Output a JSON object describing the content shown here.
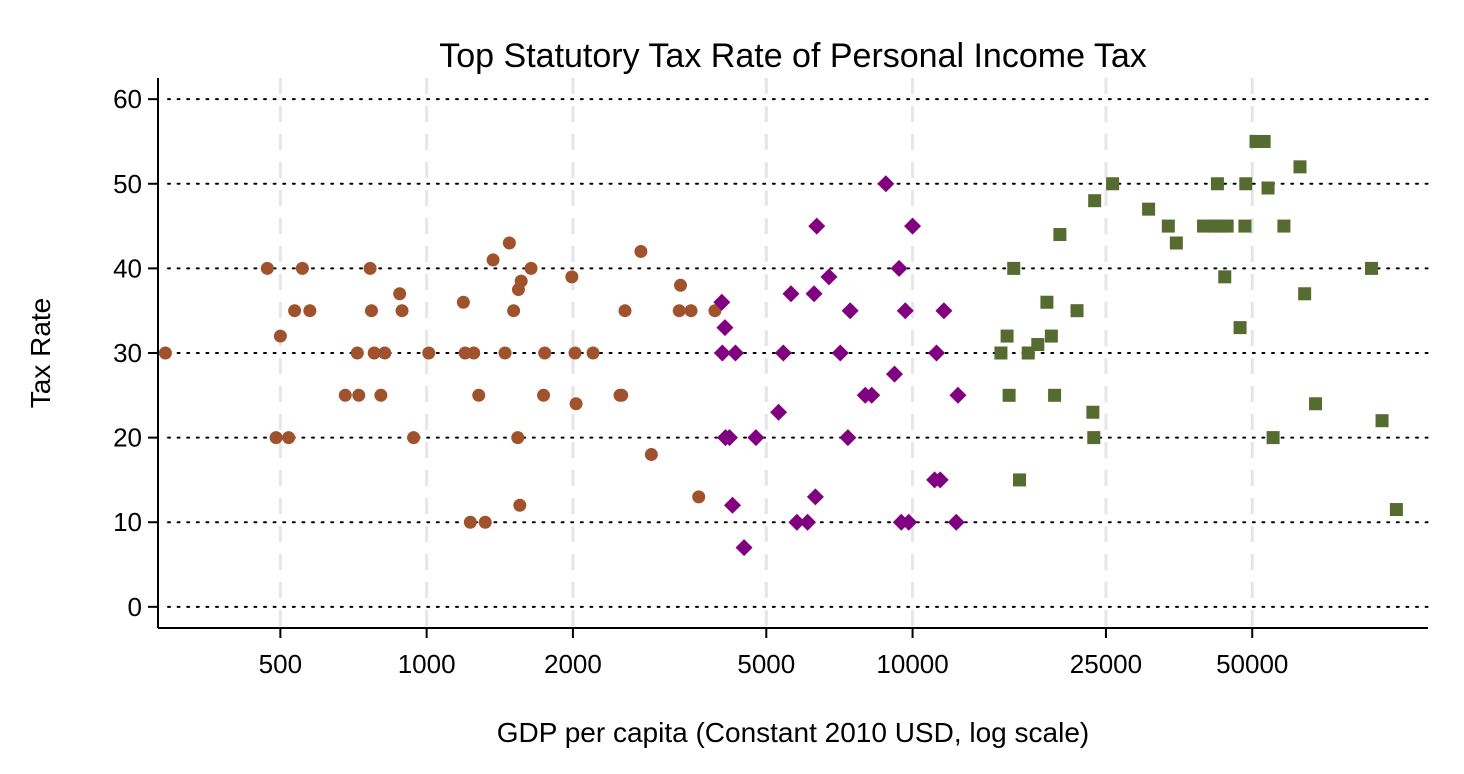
{
  "chart_data": {
    "type": "scatter",
    "title": "Top Statutory Tax Rate of Personal Income Tax",
    "xlabel": "GDP per capita (Constant 2010 USD, log scale)",
    "ylabel": "Tax Rate",
    "x_scale": "log",
    "xlim": [
      280,
      115000
    ],
    "ylim": [
      -2.5,
      62.5
    ],
    "x_ticks": [
      500,
      1000,
      2000,
      5000,
      10000,
      25000,
      50000
    ],
    "x_tick_labels": [
      "500",
      "1000",
      "2000",
      "5000",
      "10000",
      "25000",
      "50000"
    ],
    "y_ticks": [
      0,
      10,
      20,
      30,
      40,
      50,
      60
    ],
    "y_tick_labels": [
      "0",
      "10",
      "20",
      "30",
      "40",
      "50",
      "60"
    ],
    "grid": {
      "horizontal": "dotted",
      "vertical": "dashed"
    },
    "series": [
      {
        "marker": "circle",
        "color": "#a0522d",
        "points": [
          [
            290,
            30
          ],
          [
            470,
            40
          ],
          [
            490,
            20
          ],
          [
            500,
            32
          ],
          [
            520,
            20
          ],
          [
            535,
            35
          ],
          [
            555,
            40
          ],
          [
            575,
            35
          ],
          [
            680,
            25
          ],
          [
            720,
            30
          ],
          [
            725,
            25
          ],
          [
            765,
            40
          ],
          [
            770,
            35
          ],
          [
            780,
            30
          ],
          [
            805,
            25
          ],
          [
            820,
            30
          ],
          [
            880,
            37
          ],
          [
            890,
            35
          ],
          [
            940,
            20
          ],
          [
            1010,
            30
          ],
          [
            1190,
            36
          ],
          [
            1200,
            30
          ],
          [
            1230,
            10
          ],
          [
            1250,
            30
          ],
          [
            1280,
            25
          ],
          [
            1320,
            10
          ],
          [
            1370,
            41
          ],
          [
            1450,
            30
          ],
          [
            1480,
            43
          ],
          [
            1510,
            35
          ],
          [
            1540,
            20
          ],
          [
            1545,
            37.5
          ],
          [
            1555,
            12
          ],
          [
            1565,
            38.5
          ],
          [
            1640,
            40
          ],
          [
            1740,
            25
          ],
          [
            1750,
            30
          ],
          [
            1990,
            39
          ],
          [
            2020,
            30
          ],
          [
            2030,
            24
          ],
          [
            2200,
            30
          ],
          [
            2500,
            25
          ],
          [
            2520,
            25
          ],
          [
            2560,
            35
          ],
          [
            2760,
            42
          ],
          [
            2900,
            18
          ],
          [
            3330,
            38
          ],
          [
            3310,
            35
          ],
          [
            3500,
            35
          ],
          [
            3630,
            13
          ],
          [
            3920,
            35
          ]
        ]
      },
      {
        "marker": "diamond",
        "color": "#800080",
        "points": [
          [
            4050,
            36
          ],
          [
            4060,
            30
          ],
          [
            4110,
            33
          ],
          [
            4120,
            20
          ],
          [
            4200,
            20
          ],
          [
            4260,
            12
          ],
          [
            4320,
            30
          ],
          [
            4500,
            7
          ],
          [
            4760,
            20
          ],
          [
            5300,
            23
          ],
          [
            5420,
            30
          ],
          [
            5620,
            37
          ],
          [
            5780,
            10
          ],
          [
            6080,
            10
          ],
          [
            6270,
            37
          ],
          [
            6310,
            13
          ],
          [
            6350,
            45
          ],
          [
            6730,
            39
          ],
          [
            7100,
            30
          ],
          [
            7360,
            20
          ],
          [
            7440,
            35
          ],
          [
            7990,
            25
          ],
          [
            8240,
            25
          ],
          [
            8810,
            50
          ],
          [
            9180,
            27.5
          ],
          [
            9380,
            40
          ],
          [
            9480,
            10
          ],
          [
            9660,
            35
          ],
          [
            9820,
            10
          ],
          [
            10000,
            45
          ],
          [
            11100,
            15
          ],
          [
            11200,
            30
          ],
          [
            11400,
            15
          ],
          [
            11600,
            35
          ],
          [
            12300,
            10
          ],
          [
            12400,
            25
          ]
        ]
      },
      {
        "marker": "square",
        "color": "#556b2f",
        "points": [
          [
            15200,
            30
          ],
          [
            15650,
            32
          ],
          [
            15800,
            25
          ],
          [
            16150,
            40
          ],
          [
            16600,
            15
          ],
          [
            17300,
            30
          ],
          [
            18100,
            31
          ],
          [
            18900,
            36
          ],
          [
            19300,
            32
          ],
          [
            19600,
            25
          ],
          [
            20100,
            44
          ],
          [
            21800,
            35
          ],
          [
            23500,
            23
          ],
          [
            23600,
            20
          ],
          [
            23700,
            48
          ],
          [
            25800,
            50
          ],
          [
            30600,
            47
          ],
          [
            33600,
            45
          ],
          [
            34900,
            43
          ],
          [
            39700,
            45
          ],
          [
            41800,
            45
          ],
          [
            42400,
            50
          ],
          [
            42900,
            45
          ],
          [
            43900,
            39
          ],
          [
            44400,
            45
          ],
          [
            47200,
            33
          ],
          [
            48300,
            45
          ],
          [
            48500,
            50
          ],
          [
            50900,
            55
          ],
          [
            52900,
            55
          ],
          [
            53900,
            49.5
          ],
          [
            55200,
            20
          ],
          [
            58100,
            45
          ],
          [
            62700,
            52
          ],
          [
            64100,
            37
          ],
          [
            67500,
            24
          ],
          [
            88000,
            40
          ],
          [
            92500,
            22
          ],
          [
            99000,
            11.5
          ]
        ]
      }
    ]
  }
}
